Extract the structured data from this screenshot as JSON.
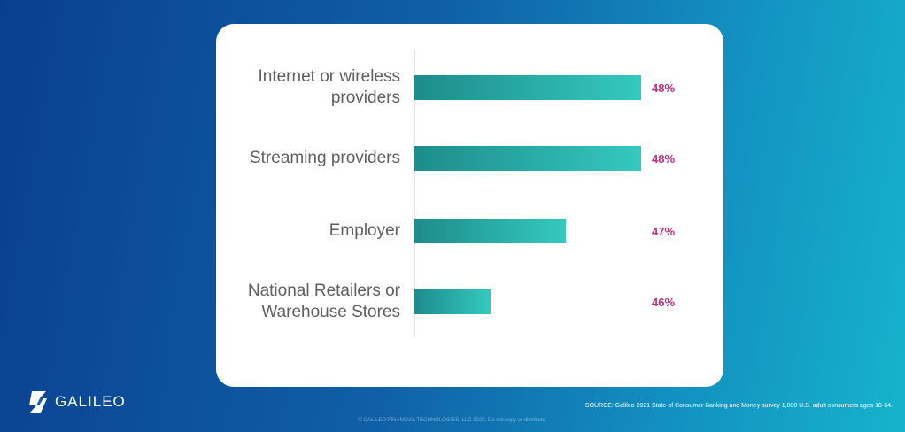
{
  "chart_data": {
    "type": "bar",
    "orientation": "horizontal",
    "categories": [
      [
        "Internet or wireless",
        "providers"
      ],
      [
        "Streaming providers"
      ],
      [
        "Employer"
      ],
      [
        "National Retailers or",
        "Warehouse Stores"
      ]
    ],
    "values": [
      48,
      48,
      47,
      46
    ],
    "value_labels": [
      "48%",
      "48%",
      "47%",
      "46%"
    ],
    "xlim": [
      45,
      48
    ],
    "grid": false,
    "colors": {
      "bar": "#2fbfb5",
      "bar_dark": "#1d8c8a",
      "label": "#c0307e"
    }
  },
  "footer": {
    "logo_text": "GALILEO",
    "source": "SOURCE: Galileo 2021 State of Consumer Banking and Money survey 1,000 U.S. adult consumers ages 18-64.",
    "copyright": "© GALILEO FINANCIAL TECHNOLOGIES, LLC 2022.  Do not copy or distribute."
  }
}
